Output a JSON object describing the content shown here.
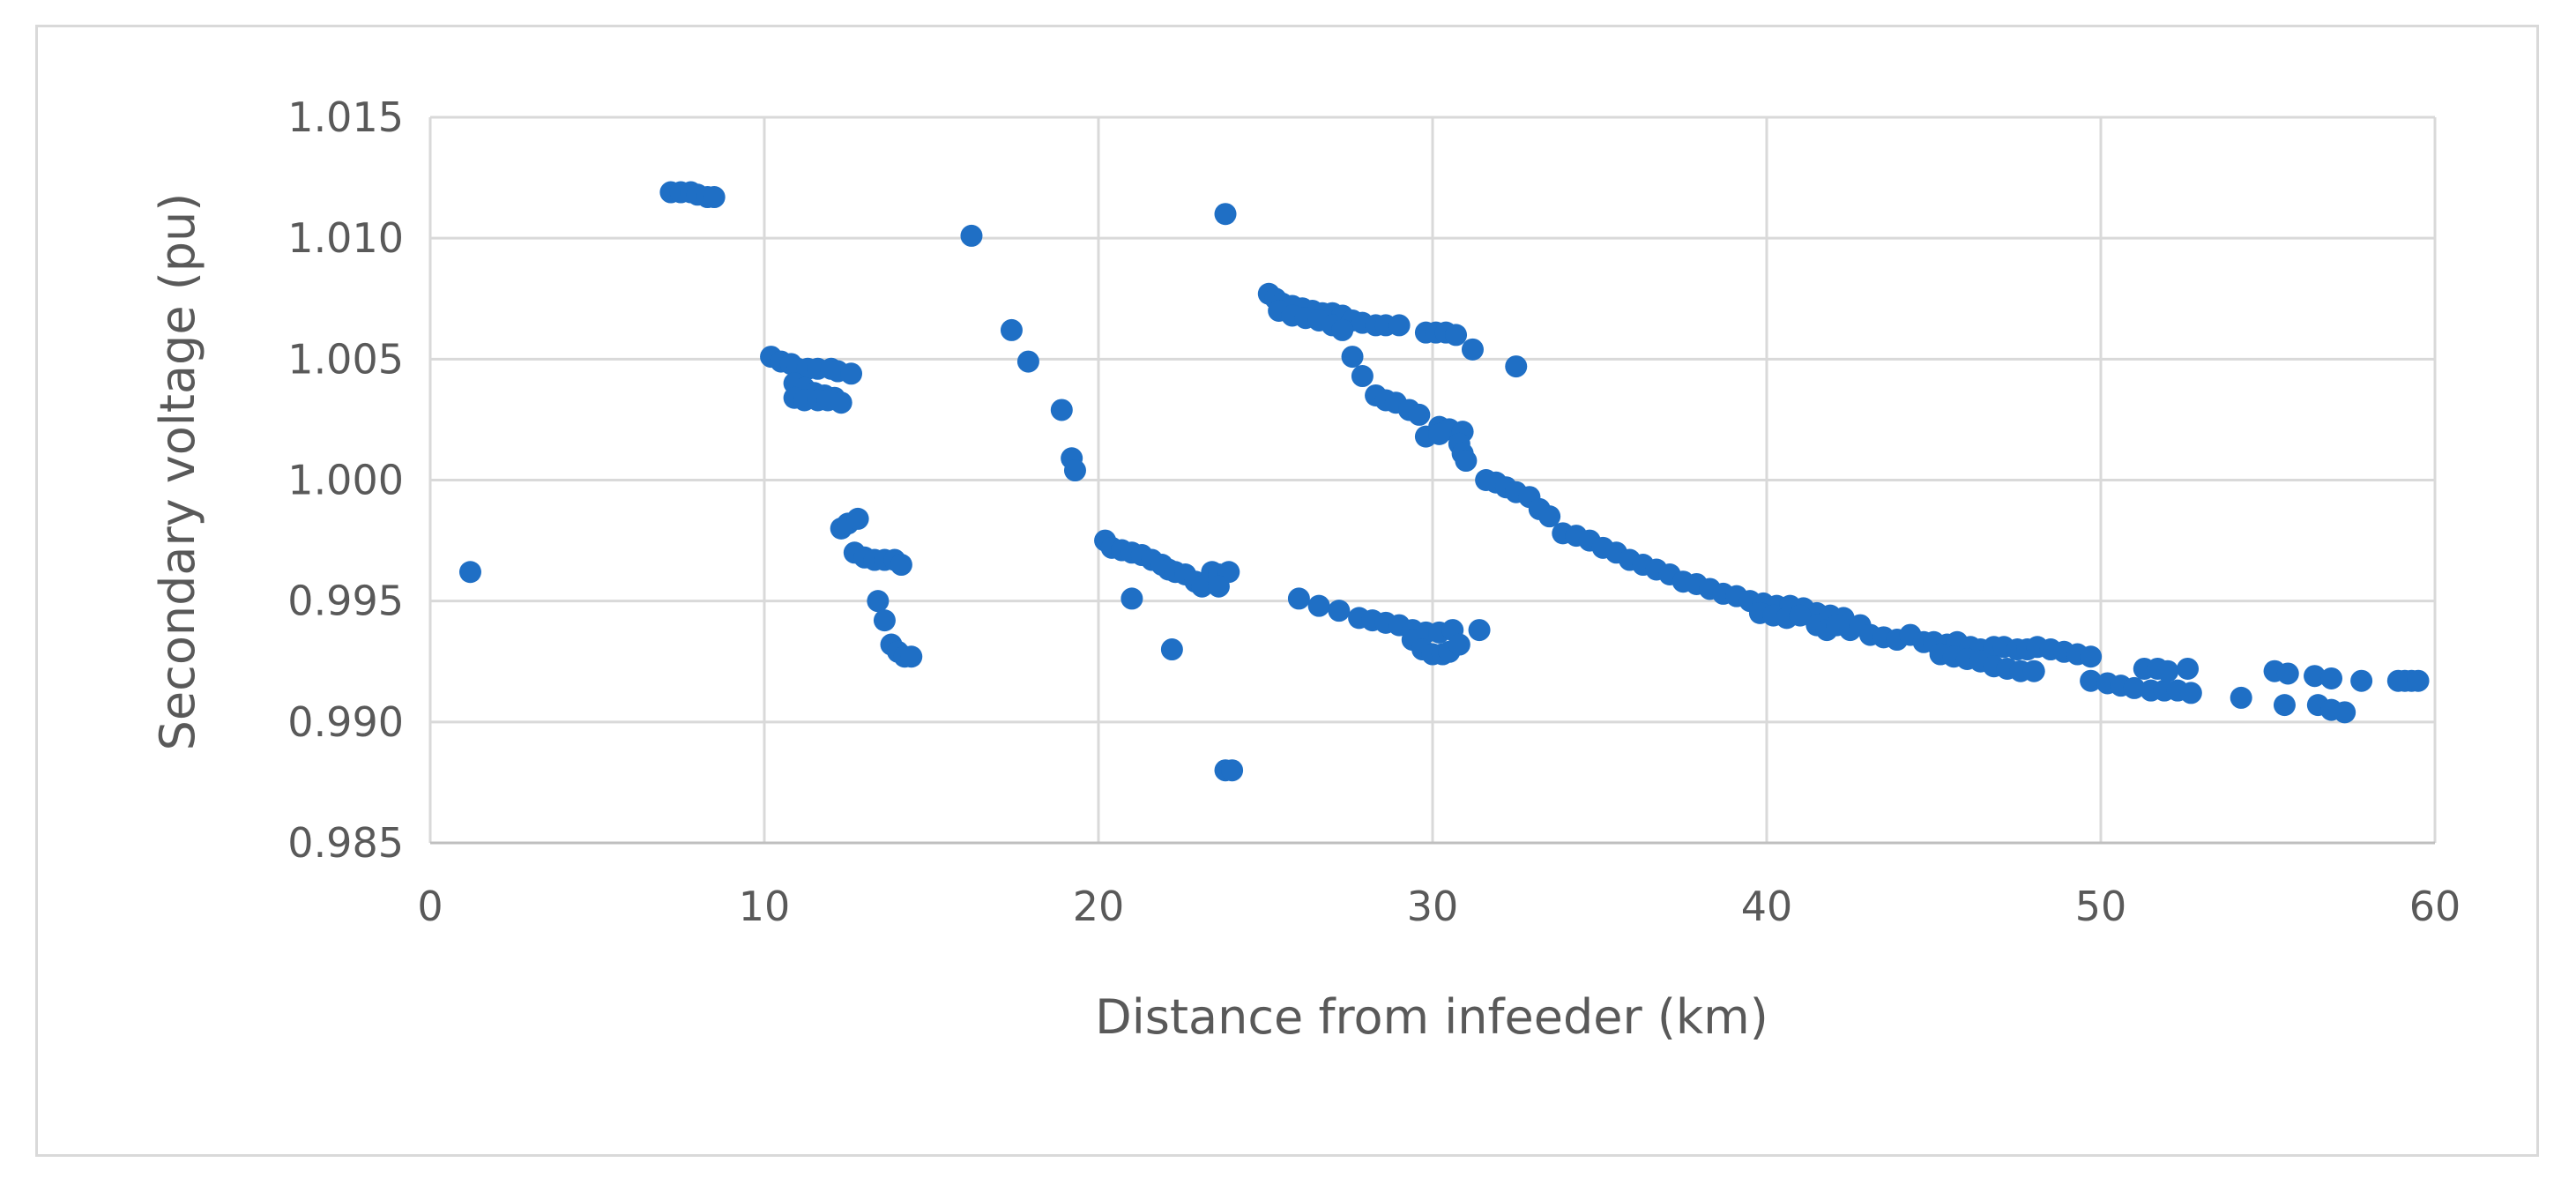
{
  "chart_data": {
    "type": "scatter",
    "xlabel": "Distance from infeeder (km)",
    "ylabel": "Secondary voltage (pu)",
    "xlim": [
      0,
      60
    ],
    "ylim": [
      0.985,
      1.015
    ],
    "grid": true,
    "legend": "none",
    "xticks": [
      "0",
      "10",
      "20",
      "30",
      "40",
      "50",
      "60"
    ],
    "yticks": [
      "0.985",
      "0.990",
      "0.995",
      "1.000",
      "1.005",
      "1.010",
      "1.015"
    ],
    "marker_color": "#1f6fc5",
    "series": [
      {
        "points": [
          [
            1.2,
            0.9962
          ],
          [
            7.2,
            1.0119
          ],
          [
            7.5,
            1.0119
          ],
          [
            7.8,
            1.0119
          ],
          [
            8.0,
            1.0118
          ],
          [
            8.3,
            1.0117
          ],
          [
            8.5,
            1.0117
          ],
          [
            10.2,
            1.0051
          ],
          [
            10.5,
            1.0049
          ],
          [
            10.8,
            1.0048
          ],
          [
            11.0,
            1.0046
          ],
          [
            11.3,
            1.0046
          ],
          [
            11.6,
            1.0046
          ],
          [
            12.0,
            1.0046
          ],
          [
            12.2,
            1.0045
          ],
          [
            12.6,
            1.0044
          ],
          [
            10.9,
            1.004
          ],
          [
            11.2,
            1.0038
          ],
          [
            11.5,
            1.0036
          ],
          [
            11.8,
            1.0035
          ],
          [
            12.1,
            1.0034
          ],
          [
            10.9,
            1.0034
          ],
          [
            11.2,
            1.0033
          ],
          [
            11.6,
            1.0033
          ],
          [
            11.9,
            1.0033
          ],
          [
            12.3,
            1.0032
          ],
          [
            12.3,
            0.998
          ],
          [
            12.5,
            0.9982
          ],
          [
            12.8,
            0.9984
          ],
          [
            12.7,
            0.997
          ],
          [
            13.0,
            0.9968
          ],
          [
            13.3,
            0.9967
          ],
          [
            13.6,
            0.9967
          ],
          [
            13.9,
            0.9967
          ],
          [
            14.1,
            0.9965
          ],
          [
            13.4,
            0.995
          ],
          [
            13.6,
            0.9942
          ],
          [
            13.8,
            0.9932
          ],
          [
            14.0,
            0.9929
          ],
          [
            14.2,
            0.9927
          ],
          [
            14.4,
            0.9927
          ],
          [
            16.2,
            1.0101
          ],
          [
            17.4,
            1.0062
          ],
          [
            17.9,
            1.0049
          ],
          [
            18.9,
            1.0029
          ],
          [
            19.2,
            1.0009
          ],
          [
            19.3,
            1.0004
          ],
          [
            20.2,
            0.9975
          ],
          [
            20.4,
            0.9972
          ],
          [
            20.7,
            0.9971
          ],
          [
            21.0,
            0.997
          ],
          [
            21.3,
            0.9969
          ],
          [
            21.6,
            0.9967
          ],
          [
            21.9,
            0.9965
          ],
          [
            22.1,
            0.9963
          ],
          [
            22.3,
            0.9962
          ],
          [
            22.6,
            0.9961
          ],
          [
            22.9,
            0.9958
          ],
          [
            23.1,
            0.9956
          ],
          [
            23.4,
            0.9962
          ],
          [
            23.6,
            0.9961
          ],
          [
            23.9,
            0.9962
          ],
          [
            23.6,
            0.9956
          ],
          [
            21.0,
            0.9951
          ],
          [
            22.2,
            0.993
          ],
          [
            23.8,
            0.988
          ],
          [
            24.0,
            0.988
          ],
          [
            23.8,
            1.011
          ],
          [
            25.1,
            1.0077
          ],
          [
            25.3,
            1.0075
          ],
          [
            25.5,
            1.0073
          ],
          [
            25.8,
            1.0072
          ],
          [
            26.1,
            1.0071
          ],
          [
            26.4,
            1.007
          ],
          [
            26.7,
            1.0069
          ],
          [
            27.0,
            1.0069
          ],
          [
            27.3,
            1.0068
          ],
          [
            27.6,
            1.0066
          ],
          [
            27.9,
            1.0065
          ],
          [
            28.3,
            1.0064
          ],
          [
            28.6,
            1.0064
          ],
          [
            29.0,
            1.0064
          ],
          [
            25.4,
            1.007
          ],
          [
            25.8,
            1.0068
          ],
          [
            26.2,
            1.0067
          ],
          [
            26.6,
            1.0066
          ],
          [
            27.0,
            1.0064
          ],
          [
            27.3,
            1.0062
          ],
          [
            29.8,
            1.0061
          ],
          [
            30.1,
            1.0061
          ],
          [
            30.4,
            1.0061
          ],
          [
            30.7,
            1.006
          ],
          [
            31.2,
            1.0054
          ],
          [
            32.5,
            1.0047
          ],
          [
            27.6,
            1.0051
          ],
          [
            27.9,
            1.0043
          ],
          [
            28.3,
            1.0035
          ],
          [
            28.6,
            1.0033
          ],
          [
            28.9,
            1.0032
          ],
          [
            29.3,
            1.0029
          ],
          [
            29.6,
            1.0027
          ],
          [
            30.2,
            1.0022
          ],
          [
            30.5,
            1.0021
          ],
          [
            30.9,
            1.002
          ],
          [
            29.8,
            1.0018
          ],
          [
            30.2,
            1.0019
          ],
          [
            30.8,
            1.0015
          ],
          [
            30.9,
            1.0011
          ],
          [
            31.0,
            1.0008
          ],
          [
            31.6,
            1.0
          ],
          [
            31.9,
            0.9999
          ],
          [
            32.2,
            0.9997
          ],
          [
            32.5,
            0.9995
          ],
          [
            32.9,
            0.9993
          ],
          [
            33.2,
            0.9988
          ],
          [
            33.5,
            0.9985
          ],
          [
            33.9,
            0.9978
          ],
          [
            34.3,
            0.9977
          ],
          [
            34.7,
            0.9975
          ],
          [
            35.1,
            0.9972
          ],
          [
            35.5,
            0.997
          ],
          [
            35.9,
            0.9967
          ],
          [
            36.3,
            0.9965
          ],
          [
            36.7,
            0.9963
          ],
          [
            37.1,
            0.9961
          ],
          [
            37.5,
            0.9958
          ],
          [
            37.9,
            0.9957
          ],
          [
            38.3,
            0.9955
          ],
          [
            38.7,
            0.9953
          ],
          [
            39.1,
            0.9952
          ],
          [
            39.5,
            0.995
          ],
          [
            39.9,
            0.9949
          ],
          [
            40.3,
            0.9948
          ],
          [
            40.7,
            0.9948
          ],
          [
            41.1,
            0.9947
          ],
          [
            41.5,
            0.9945
          ],
          [
            41.9,
            0.9944
          ],
          [
            42.3,
            0.9943
          ],
          [
            39.8,
            0.9945
          ],
          [
            40.2,
            0.9944
          ],
          [
            40.6,
            0.9943
          ],
          [
            41.0,
            0.9944
          ],
          [
            41.5,
            0.994
          ],
          [
            41.8,
            0.9938
          ],
          [
            42.1,
            0.994
          ],
          [
            42.5,
            0.9938
          ],
          [
            42.8,
            0.994
          ],
          [
            43.1,
            0.9936
          ],
          [
            43.5,
            0.9935
          ],
          [
            43.9,
            0.9934
          ],
          [
            44.3,
            0.9936
          ],
          [
            44.7,
            0.9933
          ],
          [
            45.0,
            0.9933
          ],
          [
            45.4,
            0.9932
          ],
          [
            45.7,
            0.9933
          ],
          [
            46.1,
            0.9931
          ],
          [
            46.4,
            0.993
          ],
          [
            46.8,
            0.9931
          ],
          [
            47.1,
            0.9931
          ],
          [
            47.5,
            0.993
          ],
          [
            47.8,
            0.993
          ],
          [
            48.1,
            0.9931
          ],
          [
            48.5,
            0.993
          ],
          [
            48.9,
            0.9929
          ],
          [
            49.3,
            0.9928
          ],
          [
            49.7,
            0.9927
          ],
          [
            45.2,
            0.9928
          ],
          [
            45.6,
            0.9927
          ],
          [
            46.0,
            0.9926
          ],
          [
            46.4,
            0.9925
          ],
          [
            46.8,
            0.9923
          ],
          [
            47.2,
            0.9922
          ],
          [
            47.6,
            0.9921
          ],
          [
            48.0,
            0.9921
          ],
          [
            49.7,
            0.9917
          ],
          [
            50.2,
            0.9916
          ],
          [
            50.6,
            0.9915
          ],
          [
            51.0,
            0.9914
          ],
          [
            51.5,
            0.9913
          ],
          [
            51.9,
            0.9913
          ],
          [
            52.3,
            0.9913
          ],
          [
            52.7,
            0.9912
          ],
          [
            51.3,
            0.9922
          ],
          [
            51.7,
            0.9922
          ],
          [
            52.0,
            0.9921
          ],
          [
            52.6,
            0.9922
          ],
          [
            54.2,
            0.991
          ],
          [
            55.2,
            0.9921
          ],
          [
            55.6,
            0.992
          ],
          [
            56.4,
            0.9919
          ],
          [
            56.9,
            0.9918
          ],
          [
            57.8,
            0.9917
          ],
          [
            55.5,
            0.9907
          ],
          [
            56.5,
            0.9907
          ],
          [
            56.9,
            0.9905
          ],
          [
            57.3,
            0.9904
          ],
          [
            58.9,
            0.9917
          ],
          [
            59.1,
            0.9917
          ],
          [
            59.3,
            0.9917
          ],
          [
            59.5,
            0.9917
          ],
          [
            26.0,
            0.9951
          ],
          [
            26.6,
            0.9948
          ],
          [
            27.2,
            0.9946
          ],
          [
            27.8,
            0.9943
          ],
          [
            28.2,
            0.9942
          ],
          [
            28.6,
            0.9941
          ],
          [
            29.0,
            0.994
          ],
          [
            29.4,
            0.9938
          ],
          [
            29.8,
            0.9937
          ],
          [
            30.2,
            0.9937
          ],
          [
            30.6,
            0.9938
          ],
          [
            31.4,
            0.9938
          ],
          [
            29.4,
            0.9934
          ],
          [
            29.7,
            0.993
          ],
          [
            30.0,
            0.9928
          ],
          [
            30.3,
            0.9928
          ],
          [
            30.5,
            0.9929
          ],
          [
            30.8,
            0.9932
          ]
        ]
      }
    ]
  }
}
